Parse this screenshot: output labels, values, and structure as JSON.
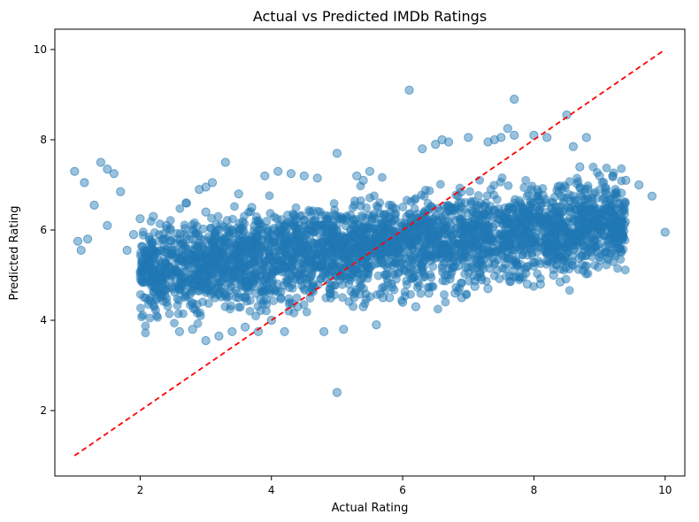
{
  "chart_data": {
    "type": "scatter",
    "title": "Actual vs Predicted IMDb Ratings",
    "xlabel": "Actual Rating",
    "ylabel": "Predicted Rating",
    "xlim": [
      0.7,
      10.3
    ],
    "ylim": [
      0.55,
      10.45
    ],
    "xticks": [
      2,
      4,
      6,
      8,
      10
    ],
    "yticks": [
      2,
      4,
      6,
      8,
      10
    ],
    "grid": false,
    "point_color": "#1f77b4",
    "point_alpha": 0.45,
    "reference_line": {
      "x": [
        1,
        10
      ],
      "y": [
        1,
        10
      ],
      "color": "#ff0000",
      "style": "dashed"
    },
    "series": [
      {
        "x": [
          1.0,
          1.05,
          1.1,
          1.15,
          1.2,
          1.4,
          1.5,
          1.6,
          1.3,
          1.5,
          1.7,
          1.8,
          1.9,
          2.0,
          2.2,
          2.3,
          2.4,
          2.6,
          2.8,
          3.0,
          3.2,
          3.4,
          3.6,
          3.8,
          4.0,
          2.7,
          2.9,
          3.0,
          3.1,
          3.3,
          3.5,
          3.7,
          3.9,
          4.1,
          4.3,
          4.5,
          4.7,
          5.0,
          5.3,
          5.5,
          4.2,
          4.8,
          5.1,
          5.6,
          3.2,
          3.5,
          6.1,
          6.3,
          6.5,
          6.7,
          7.0,
          7.3,
          7.5,
          7.7,
          8.0,
          8.2,
          7.7,
          8.5,
          8.6,
          7.6,
          8.7,
          8.8,
          9.0,
          9.2,
          9.4,
          9.6,
          9.8,
          10.0,
          5.0,
          5.2,
          5.4,
          5.8,
          6.0,
          6.2,
          6.9,
          7.1,
          7.3,
          8.1,
          8.4,
          9.0,
          9.3,
          2.1,
          2.5,
          3.6,
          4.4,
          4.9,
          5.7,
          6.4,
          6.8,
          7.2,
          7.9,
          8.3,
          3.0,
          3.4,
          4.6,
          5.4,
          6.6,
          7.4,
          8.9,
          9.1
        ],
        "y": [
          7.3,
          5.75,
          5.55,
          7.05,
          5.8,
          7.5,
          7.35,
          7.25,
          6.55,
          6.1,
          6.85,
          5.55,
          5.9,
          6.25,
          6.3,
          4.65,
          6.1,
          3.75,
          3.8,
          3.55,
          3.65,
          3.75,
          3.85,
          3.75,
          4.0,
          6.6,
          6.9,
          6.95,
          7.05,
          7.5,
          6.8,
          6.5,
          7.2,
          7.3,
          7.25,
          7.2,
          7.15,
          7.7,
          7.2,
          7.3,
          3.75,
          3.75,
          3.8,
          3.9,
          4.6,
          4.5,
          9.1,
          7.8,
          7.9,
          7.95,
          8.05,
          7.95,
          8.05,
          8.1,
          8.1,
          8.05,
          8.9,
          8.55,
          7.85,
          8.25,
          7.4,
          8.05,
          7.2,
          7.2,
          7.1,
          7.0,
          6.75,
          5.95,
          2.4,
          4.9,
          4.3,
          4.5,
          4.4,
          4.3,
          4.5,
          4.75,
          4.7,
          4.8,
          4.85,
          5.4,
          5.6,
          5.4,
          4.7,
          4.5,
          4.3,
          4.6,
          4.5,
          4.6,
          4.6,
          4.9,
          4.8,
          5.0,
          6.4,
          6.0,
          6.3,
          7.1,
          8.0,
          8.0,
          6.2,
          6.8
        ]
      }
    ]
  }
}
